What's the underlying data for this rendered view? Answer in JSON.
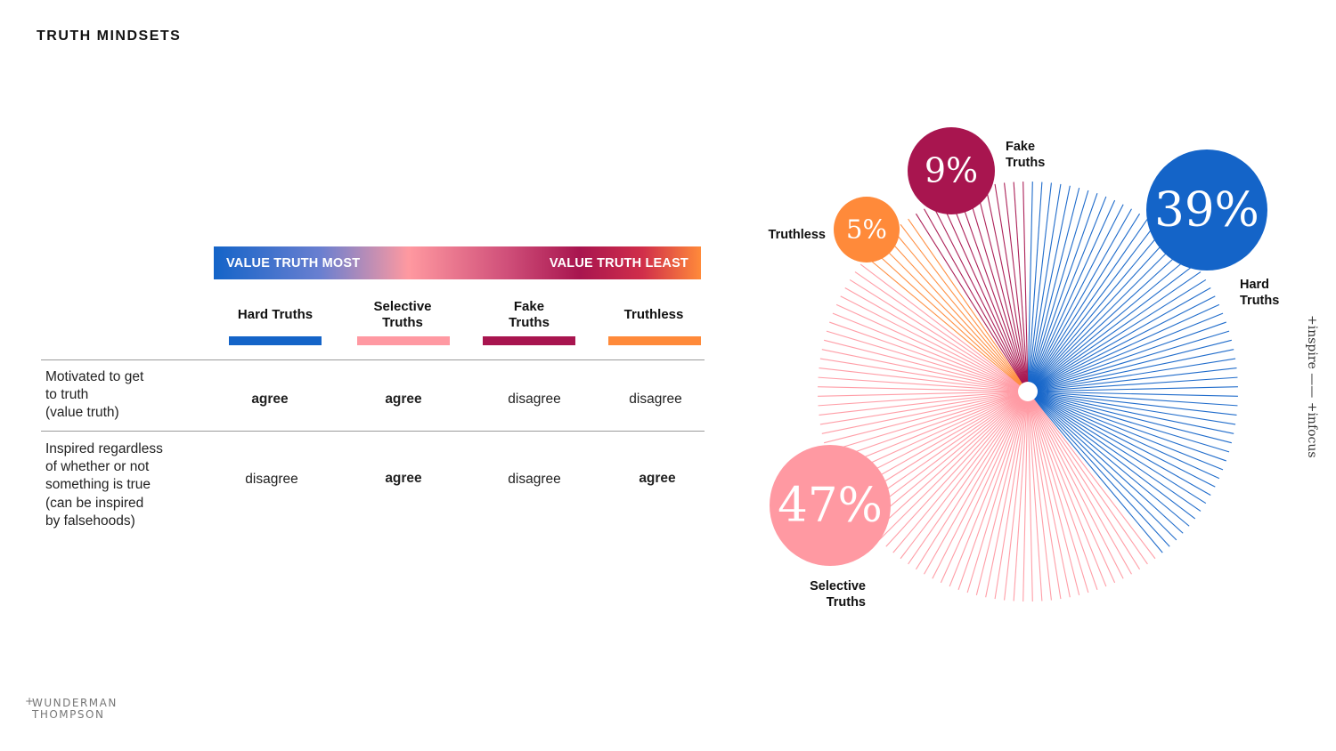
{
  "page_title": "TRUTH MINDSETS",
  "scale_bar": {
    "left_label": "VALUE TRUTH MOST",
    "right_label": "VALUE TRUTH LEAST"
  },
  "table": {
    "columns": [
      {
        "label": "Hard Truths",
        "color": "#1464c8"
      },
      {
        "label": "Selective\nTruths",
        "color": "#ff99a2"
      },
      {
        "label": "Fake\nTruths",
        "color": "#a8154f"
      },
      {
        "label": "Truthless",
        "color": "#ff8a3a"
      }
    ],
    "rows": [
      {
        "label": "Motivated to get\nto truth\n(value truth)",
        "cells": [
          "agree",
          "agree",
          "disagree",
          "disagree"
        ]
      },
      {
        "label": "Inspired regardless\nof whether or not\nsomething is true\n(can be inspired\nby falsehoods)",
        "cells": [
          "disagree",
          "agree",
          "disagree",
          "agree"
        ]
      }
    ]
  },
  "chart_data": {
    "type": "pie",
    "slices": [
      {
        "label": "Hard Truths",
        "value": 39,
        "display": "39%",
        "color": "#1464c8"
      },
      {
        "label": "Selective Truths",
        "value": 47,
        "display": "47%",
        "color": "#ff99a2"
      },
      {
        "label": "Truthless",
        "value": 5,
        "display": "5%",
        "color": "#ff8a3a"
      },
      {
        "label": "Fake Truths",
        "value": 9,
        "display": "9%",
        "color": "#a8154f"
      }
    ]
  },
  "brand": {
    "line1": "WUNDERMAN",
    "line2": "THOMPSON",
    "plus": "+"
  },
  "side_label": "+inspire —— +infocus"
}
